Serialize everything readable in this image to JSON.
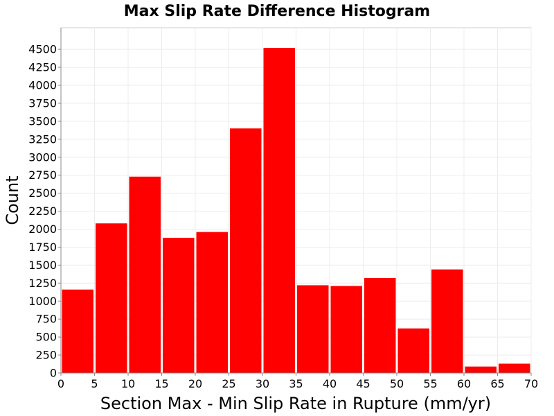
{
  "chart_data": {
    "type": "bar",
    "title": "Max Slip Rate Difference Histogram",
    "xlabel": "Section Max - Min Slip Rate in Rupture (mm/yr)",
    "ylabel": "Count",
    "bin_width": 5,
    "x_bins": [
      0,
      5,
      10,
      15,
      20,
      25,
      30,
      35,
      40,
      45,
      50,
      55,
      60,
      65
    ],
    "values": [
      1160,
      2080,
      2730,
      1880,
      1960,
      3400,
      4520,
      1220,
      1210,
      1320,
      620,
      1440,
      90,
      130
    ],
    "xlim": [
      0,
      70
    ],
    "ylim": [
      0,
      4800
    ],
    "x_ticks": [
      "0",
      "5",
      "10",
      "15",
      "20",
      "25",
      "30",
      "35",
      "40",
      "45",
      "50",
      "55",
      "60",
      "65",
      "70"
    ],
    "y_ticks": [
      "0",
      "250",
      "500",
      "750",
      "1000",
      "1250",
      "1500",
      "1750",
      "2000",
      "2250",
      "2500",
      "2750",
      "3000",
      "3250",
      "3500",
      "3750",
      "4000",
      "4250",
      "4500"
    ],
    "grid": true,
    "legend": "none",
    "bar_color": "#ff0000"
  }
}
